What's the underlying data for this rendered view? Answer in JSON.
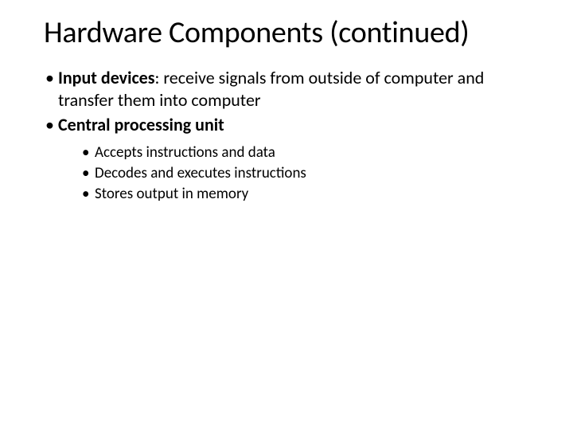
{
  "slide": {
    "title": "Hardware Components (continued)",
    "background_color": "#ffffff",
    "text_color": "#000000",
    "title_fontsize": 38,
    "body_fontsize_level1": 22,
    "body_fontsize_level2": 19,
    "bullets": [
      {
        "term": "Input devices",
        "separator": ": ",
        "desc": "receive signals from outside of computer and transfer them into computer",
        "children": []
      },
      {
        "term": "Central processing unit",
        "separator": "",
        "desc": "",
        "children": [
          "Accepts instructions and data",
          "Decodes and executes instructions",
          "Stores output in memory"
        ]
      }
    ]
  }
}
